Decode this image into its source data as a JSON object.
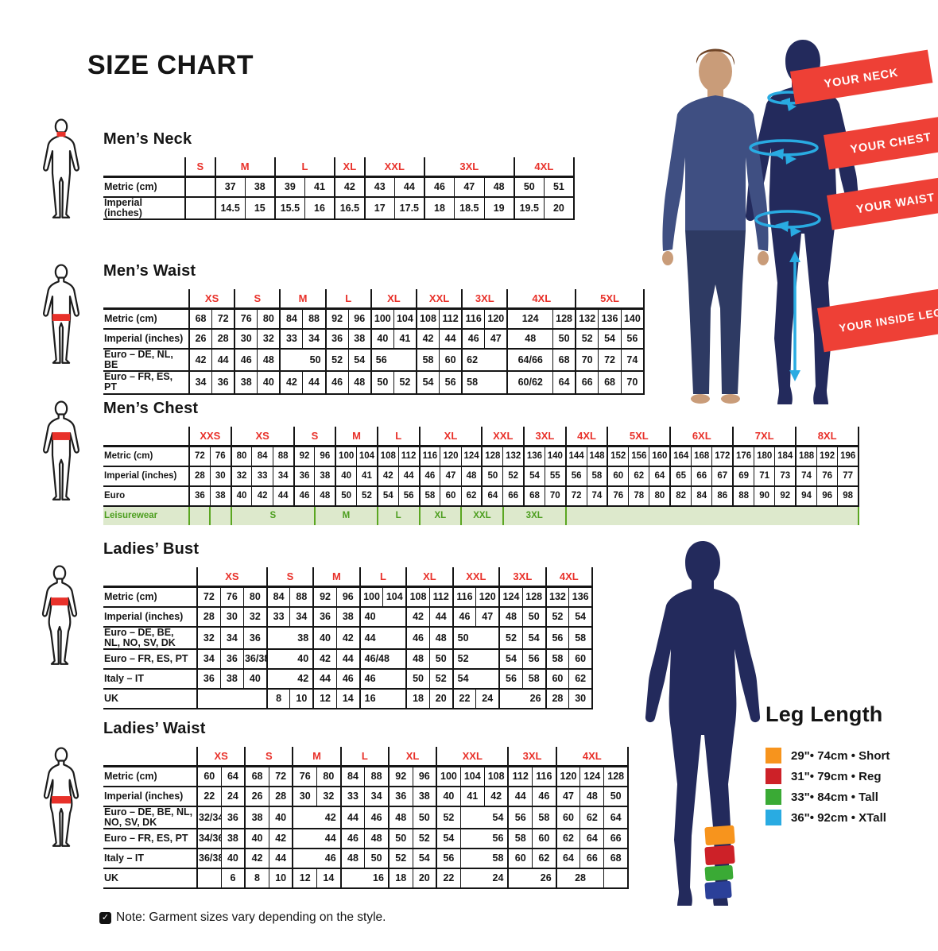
{
  "page": {
    "title": "SIZE CHART",
    "note": "Note: Garment sizes vary depending on the style."
  },
  "colors": {
    "accent_red": "#e8312a",
    "banner_red": "#ee4036",
    "navy": "#232a5c",
    "cyan": "#29abe2",
    "leisure_green": "#4c9e1e",
    "leisure_bg": "#dde9cc"
  },
  "hero": {
    "banners": [
      "YOUR NECK",
      "YOUR CHEST",
      "YOUR WAIST",
      "YOUR INSIDE LEG"
    ]
  },
  "leg_length": {
    "title": "Leg Length",
    "items": [
      {
        "color": "#f7941d",
        "label": "29\"• 74cm • Short"
      },
      {
        "color": "#cd2128",
        "label": "31\"• 79cm • Reg"
      },
      {
        "color": "#3aaa35",
        "label": "33\"• 84cm • Tall"
      },
      {
        "color": "#29abe2",
        "label": "36\"• 92cm • XTall"
      }
    ]
  },
  "tables": [
    {
      "id": "mens_neck",
      "title": "Men’s Neck",
      "figure": {
        "type": "male",
        "highlight": "neck"
      },
      "groups": [
        {
          "label": "S",
          "span": 1
        },
        {
          "label": "M",
          "span": 2
        },
        {
          "label": "L",
          "span": 2
        },
        {
          "label": "XL",
          "span": 1
        },
        {
          "label": "XXL",
          "span": 2
        },
        {
          "label": "3XL",
          "span": 3
        },
        {
          "label": "4XL",
          "span": 2
        }
      ],
      "rows": [
        {
          "label": "Metric (cm)",
          "cells": [
            "",
            "37",
            "38",
            "39",
            "41",
            "42",
            "43",
            "44",
            "46",
            "47",
            "48",
            "50",
            "51"
          ]
        },
        {
          "label": "Imperial (inches)",
          "cells": [
            "",
            "14.5",
            "15",
            "15.5",
            "16",
            "16.5",
            "17",
            "17.5",
            "18",
            "18.5",
            "19",
            "19.5",
            "20"
          ]
        }
      ]
    },
    {
      "id": "mens_waist",
      "title": "Men’s Waist",
      "figure": {
        "type": "male",
        "highlight": "waist"
      },
      "groups": [
        {
          "label": "XS",
          "span": 2
        },
        {
          "label": "S",
          "span": 2
        },
        {
          "label": "M",
          "span": 2
        },
        {
          "label": "L",
          "span": 2
        },
        {
          "label": "XL",
          "span": 2
        },
        {
          "label": "XXL",
          "span": 2
        },
        {
          "label": "3XL",
          "span": 2
        },
        {
          "label": "4XL",
          "span": 3
        },
        {
          "label": "5XL",
          "span": 3
        }
      ],
      "rows": [
        {
          "label": "Metric (cm)",
          "cells": [
            "68",
            "72",
            "76",
            "80",
            "84",
            "88",
            "92",
            "96",
            "100",
            "104",
            "108",
            "112",
            "116",
            "120",
            {
              "v": "124",
              "s": 2
            },
            "128",
            "132",
            "136",
            "140"
          ]
        },
        {
          "label": "Imperial (inches)",
          "cells": [
            "26",
            "28",
            "30",
            "32",
            "33",
            "34",
            "36",
            "38",
            "40",
            "41",
            "42",
            "44",
            "46",
            "47",
            {
              "v": "48",
              "s": 2
            },
            "50",
            "52",
            "54",
            "56"
          ]
        },
        {
          "label": "Euro – DE, NL, BE",
          "cells": [
            "42",
            "44",
            "46",
            "48",
            {
              "v": "50",
              "s": 2,
              "a": "right"
            },
            "52",
            "54",
            {
              "v": "56",
              "s": 2,
              "a": "left"
            },
            "58",
            "60",
            {
              "v": "62",
              "s": 2,
              "a": "left"
            },
            {
              "v": "64/66",
              "s": 2
            },
            "68",
            "70",
            "72",
            "74"
          ]
        },
        {
          "label": "Euro – FR, ES, PT",
          "cells": [
            "34",
            "36",
            "38",
            "40",
            "42",
            "44",
            "46",
            "48",
            "50",
            "52",
            "54",
            "56",
            {
              "v": "58",
              "s": 2,
              "a": "left"
            },
            {
              "v": "60/62",
              "s": 2
            },
            "64",
            "66",
            "68",
            "70"
          ]
        }
      ]
    },
    {
      "id": "mens_chest",
      "title": "Men’s Chest",
      "figure": {
        "type": "male",
        "highlight": "chest"
      },
      "groups": [
        {
          "label": "XXS",
          "span": 2
        },
        {
          "label": "XS",
          "span": 3
        },
        {
          "label": "S",
          "span": 2
        },
        {
          "label": "M",
          "span": 2
        },
        {
          "label": "L",
          "span": 2
        },
        {
          "label": "XL",
          "span": 3
        },
        {
          "label": "XXL",
          "span": 2
        },
        {
          "label": "3XL",
          "span": 2
        },
        {
          "label": "4XL",
          "span": 2
        },
        {
          "label": "5XL",
          "span": 3
        },
        {
          "label": "6XL",
          "span": 3
        },
        {
          "label": "7XL",
          "span": 3
        },
        {
          "label": "8XL",
          "span": 3
        }
      ],
      "rows": [
        {
          "label": "Metric (cm)",
          "cells": [
            "72",
            "76",
            "80",
            "84",
            "88",
            "92",
            "96",
            "100",
            "104",
            "108",
            "112",
            "116",
            "120",
            "124",
            "128",
            "132",
            "136",
            "140",
            "144",
            "148",
            "152",
            "156",
            "160",
            "164",
            "168",
            "172",
            "176",
            "180",
            "184",
            "188",
            "192",
            "196"
          ]
        },
        {
          "label": "Imperial (inches)",
          "cells": [
            "28",
            "30",
            "32",
            "33",
            "34",
            "36",
            "38",
            "40",
            "41",
            "42",
            "44",
            "46",
            "47",
            "48",
            "50",
            "52",
            "54",
            "55",
            "56",
            "58",
            "60",
            "62",
            "64",
            "65",
            "66",
            "67",
            "69",
            "71",
            "73",
            "74",
            "76",
            "77"
          ]
        },
        {
          "label": "Euro",
          "cells": [
            "36",
            "38",
            "40",
            "42",
            "44",
            "46",
            "48",
            "50",
            "52",
            "54",
            "56",
            "58",
            "60",
            "62",
            "64",
            "66",
            "68",
            "70",
            "72",
            "74",
            "76",
            "78",
            "80",
            "82",
            "84",
            "86",
            "88",
            "90",
            "92",
            "94",
            "96",
            "98"
          ]
        },
        {
          "label": "Leisurewear",
          "cls": "leisure",
          "cells": [
            "",
            "",
            {
              "v": "S",
              "s": 4
            },
            {
              "v": "M",
              "s": 3
            },
            {
              "v": "L",
              "s": 2
            },
            {
              "v": "XL",
              "s": 2
            },
            {
              "v": "XXL",
              "s": 2
            },
            {
              "v": "3XL",
              "s": 3
            },
            {
              "v": "",
              "s": 14
            }
          ]
        }
      ]
    },
    {
      "id": "ladies_bust",
      "title": "Ladies’ Bust",
      "figure": {
        "type": "female",
        "highlight": "bust"
      },
      "groups": [
        {
          "label": "XS",
          "span": 3
        },
        {
          "label": "S",
          "span": 2
        },
        {
          "label": "M",
          "span": 2
        },
        {
          "label": "L",
          "span": 2
        },
        {
          "label": "XL",
          "span": 2
        },
        {
          "label": "XXL",
          "span": 2
        },
        {
          "label": "3XL",
          "span": 2
        },
        {
          "label": "4XL",
          "span": 2
        }
      ],
      "rows": [
        {
          "label": "Metric (cm)",
          "cells": [
            "72",
            "76",
            "80",
            "84",
            "88",
            "92",
            "96",
            "100",
            "104",
            "108",
            "112",
            "116",
            "120",
            "124",
            "128",
            "132",
            "136"
          ]
        },
        {
          "label": "Imperial (inches)",
          "cells": [
            "28",
            "30",
            "32",
            "33",
            "34",
            "36",
            "38",
            {
              "v": "40",
              "s": 2,
              "a": "left"
            },
            "42",
            "44",
            "46",
            "47",
            "48",
            "50",
            "52",
            "54"
          ]
        },
        {
          "label": "Euro –  DE, BE,\nNL, NO, SV, DK",
          "cells": [
            "32",
            "34",
            "36",
            {
              "v": "38",
              "s": 2,
              "a": "right"
            },
            "40",
            "42",
            {
              "v": "44",
              "s": 2,
              "a": "left"
            },
            "46",
            "48",
            {
              "v": "50",
              "s": 2,
              "a": "left"
            },
            "52",
            "54",
            "56",
            "58"
          ]
        },
        {
          "label": "Euro – FR, ES, PT",
          "cells": [
            "34",
            "36",
            "36/38",
            {
              "v": "40",
              "s": 2,
              "a": "right"
            },
            "42",
            "44",
            {
              "v": "46/48",
              "s": 2,
              "a": "left"
            },
            "48",
            "50",
            {
              "v": "52",
              "s": 2,
              "a": "left"
            },
            "54",
            "56",
            "58",
            "60"
          ]
        },
        {
          "label": "Italy – IT",
          "cells": [
            "36",
            "38",
            "40",
            {
              "v": "42",
              "s": 2,
              "a": "right"
            },
            "44",
            "46",
            {
              "v": "46",
              "s": 2,
              "a": "left"
            },
            "50",
            "52",
            {
              "v": "54",
              "s": 2,
              "a": "left"
            },
            "56",
            "58",
            "60",
            "62"
          ]
        },
        {
          "label": "UK",
          "cells": [
            {
              "v": "",
              "s": 3
            },
            "8",
            "10",
            "12",
            "14",
            {
              "v": "16",
              "s": 2,
              "a": "left"
            },
            "18",
            "20",
            "22",
            "24",
            {
              "v": "26",
              "s": 2,
              "a": "right"
            },
            "28",
            "30"
          ]
        }
      ]
    },
    {
      "id": "ladies_waist",
      "title": "Ladies’ Waist",
      "figure": {
        "type": "female",
        "highlight": "waist"
      },
      "groups": [
        {
          "label": "XS",
          "span": 2
        },
        {
          "label": "S",
          "span": 2
        },
        {
          "label": "M",
          "span": 2
        },
        {
          "label": "L",
          "span": 2
        },
        {
          "label": "XL",
          "span": 2
        },
        {
          "label": "XXL",
          "span": 3
        },
        {
          "label": "3XL",
          "span": 2
        },
        {
          "label": "4XL",
          "span": 3
        }
      ],
      "rows": [
        {
          "label": "Metric (cm)",
          "cells": [
            "60",
            "64",
            "68",
            "72",
            "76",
            "80",
            "84",
            "88",
            "92",
            "96",
            "100",
            "104",
            "108",
            "112",
            "116",
            "120",
            "124",
            "128"
          ]
        },
        {
          "label": "Imperial (inches)",
          "cells": [
            "22",
            "24",
            "26",
            "28",
            "30",
            "32",
            "33",
            "34",
            "36",
            "38",
            "40",
            "41",
            "42",
            "44",
            "46",
            "47",
            "48",
            "50"
          ]
        },
        {
          "label": "Euro – DE, BE, NL,\nNO, SV, DK",
          "cells": [
            "32/34",
            "36",
            "38",
            "40",
            {
              "v": "42",
              "s": 2,
              "a": "right"
            },
            "44",
            "46",
            "48",
            "50",
            "52",
            {
              "v": "54",
              "s": 2,
              "a": "right"
            },
            "56",
            "58",
            "60",
            "62",
            "64"
          ]
        },
        {
          "label": "Euro – FR, ES, PT",
          "cells": [
            "34/36",
            "38",
            "40",
            "42",
            {
              "v": "44",
              "s": 2,
              "a": "right"
            },
            "46",
            "48",
            "50",
            "52",
            "54",
            {
              "v": "56",
              "s": 2,
              "a": "right"
            },
            "58",
            "60",
            "62",
            "64",
            "66"
          ]
        },
        {
          "label": "Italy – IT",
          "cells": [
            "36/38",
            "40",
            "42",
            "44",
            {
              "v": "46",
              "s": 2,
              "a": "right"
            },
            "48",
            "50",
            "52",
            "54",
            "56",
            {
              "v": "58",
              "s": 2,
              "a": "right"
            },
            "60",
            "62",
            "64",
            "66",
            "68"
          ]
        },
        {
          "label": "UK",
          "cells": [
            "",
            "6",
            "8",
            "10",
            "12",
            "14",
            {
              "v": "16",
              "s": 2,
              "a": "right"
            },
            "18",
            "20",
            "22",
            {
              "v": "24",
              "s": 2,
              "a": "right"
            },
            {
              "v": "26",
              "s": 2,
              "a": "right"
            },
            {
              "v": "28",
              "s": 2
            },
            ""
          ]
        }
      ]
    }
  ]
}
